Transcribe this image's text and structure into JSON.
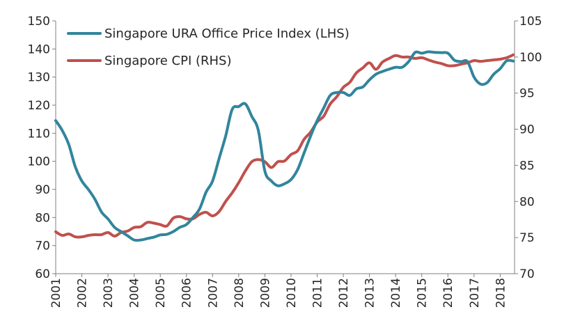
{
  "chart_data": {
    "type": "line",
    "x_range": [
      2001.0,
      2018.55
    ],
    "x_ticks": [
      "2001",
      "2002",
      "2003",
      "2004",
      "2005",
      "2006",
      "2007",
      "2008",
      "2009",
      "2010",
      "2011",
      "2012",
      "2013",
      "2014",
      "2015",
      "2016",
      "2017",
      "2018"
    ],
    "y_left": {
      "range": [
        60,
        150
      ],
      "ticks": [
        "60",
        "70",
        "80",
        "90",
        "100",
        "110",
        "120",
        "130",
        "140",
        "150"
      ]
    },
    "y_right": {
      "range": [
        70,
        105
      ],
      "ticks": [
        "70",
        "75",
        "80",
        "85",
        "90",
        "95",
        "100",
        "105"
      ]
    },
    "grid": false,
    "legend_position": "top-left",
    "series": [
      {
        "name": "Singapore URA Office Price Index (LHS)",
        "axis": "left",
        "color": "#31859c",
        "points": [
          [
            2001.0,
            114.5
          ],
          [
            2001.25,
            111
          ],
          [
            2001.5,
            106
          ],
          [
            2001.75,
            98
          ],
          [
            2002.0,
            93
          ],
          [
            2002.25,
            90
          ],
          [
            2002.5,
            86.5
          ],
          [
            2002.75,
            82
          ],
          [
            2003.0,
            79.5
          ],
          [
            2003.25,
            76.5
          ],
          [
            2003.5,
            75
          ],
          [
            2003.75,
            73.5
          ],
          [
            2004.0,
            72
          ],
          [
            2004.25,
            72
          ],
          [
            2004.5,
            72.5
          ],
          [
            2004.75,
            73
          ],
          [
            2005.0,
            73.8
          ],
          [
            2005.25,
            74
          ],
          [
            2005.5,
            75
          ],
          [
            2005.75,
            76.5
          ],
          [
            2006.0,
            77.5
          ],
          [
            2006.25,
            80
          ],
          [
            2006.5,
            83
          ],
          [
            2006.75,
            89
          ],
          [
            2007.0,
            93
          ],
          [
            2007.25,
            101
          ],
          [
            2007.5,
            109
          ],
          [
            2007.75,
            118.5
          ],
          [
            2008.0,
            119.5
          ],
          [
            2008.25,
            120.5
          ],
          [
            2008.5,
            116
          ],
          [
            2008.75,
            111
          ],
          [
            2009.0,
            96.5
          ],
          [
            2009.25,
            93
          ],
          [
            2009.5,
            91.3
          ],
          [
            2009.75,
            92
          ],
          [
            2010.0,
            93.5
          ],
          [
            2010.25,
            97
          ],
          [
            2010.5,
            103
          ],
          [
            2010.75,
            109
          ],
          [
            2011.0,
            114.5
          ],
          [
            2011.25,
            119
          ],
          [
            2011.5,
            123.5
          ],
          [
            2011.75,
            124.5
          ],
          [
            2012.0,
            124.5
          ],
          [
            2012.25,
            123.5
          ],
          [
            2012.5,
            125.8
          ],
          [
            2012.75,
            126.5
          ],
          [
            2013.0,
            129
          ],
          [
            2013.25,
            131
          ],
          [
            2013.5,
            132
          ],
          [
            2013.75,
            132.8
          ],
          [
            2014.0,
            133.5
          ],
          [
            2014.25,
            133.5
          ],
          [
            2014.5,
            135.5
          ],
          [
            2014.75,
            138.8
          ],
          [
            2015.0,
            138.5
          ],
          [
            2015.25,
            139
          ],
          [
            2015.5,
            138.8
          ],
          [
            2015.75,
            138.7
          ],
          [
            2016.0,
            138.5
          ],
          [
            2016.25,
            136
          ],
          [
            2016.5,
            135.5
          ],
          [
            2016.75,
            135.5
          ],
          [
            2017.0,
            130
          ],
          [
            2017.25,
            127.5
          ],
          [
            2017.5,
            128
          ],
          [
            2017.75,
            131
          ],
          [
            2018.0,
            133
          ],
          [
            2018.25,
            135.8
          ],
          [
            2018.5,
            135.7
          ]
        ]
      },
      {
        "name": "Singapore CPI (RHS)",
        "axis": "right",
        "color": "#c0504d",
        "points": [
          [
            2001.0,
            75.8
          ],
          [
            2001.25,
            75.3
          ],
          [
            2001.5,
            75.5
          ],
          [
            2001.75,
            75.1
          ],
          [
            2002.0,
            75.1
          ],
          [
            2002.25,
            75.3
          ],
          [
            2002.5,
            75.4
          ],
          [
            2002.75,
            75.4
          ],
          [
            2003.0,
            75.7
          ],
          [
            2003.25,
            75.2
          ],
          [
            2003.5,
            75.7
          ],
          [
            2003.75,
            75.9
          ],
          [
            2004.0,
            76.4
          ],
          [
            2004.25,
            76.5
          ],
          [
            2004.5,
            77.1
          ],
          [
            2004.75,
            77
          ],
          [
            2005.0,
            76.8
          ],
          [
            2005.25,
            76.6
          ],
          [
            2005.5,
            77.7
          ],
          [
            2005.75,
            77.9
          ],
          [
            2006.0,
            77.6
          ],
          [
            2006.25,
            77.6
          ],
          [
            2006.5,
            78.2
          ],
          [
            2006.75,
            78.5
          ],
          [
            2007.0,
            78
          ],
          [
            2007.25,
            78.6
          ],
          [
            2007.5,
            80
          ],
          [
            2007.75,
            81.2
          ],
          [
            2008.0,
            82.6
          ],
          [
            2008.25,
            84.2
          ],
          [
            2008.5,
            85.5
          ],
          [
            2008.75,
            85.8
          ],
          [
            2009.0,
            85.5
          ],
          [
            2009.25,
            84.7
          ],
          [
            2009.5,
            85.5
          ],
          [
            2009.75,
            85.6
          ],
          [
            2010.0,
            86.5
          ],
          [
            2010.25,
            87
          ],
          [
            2010.5,
            88.6
          ],
          [
            2010.75,
            89.6
          ],
          [
            2011.0,
            91
          ],
          [
            2011.25,
            91.8
          ],
          [
            2011.5,
            93.5
          ],
          [
            2011.75,
            94.5
          ],
          [
            2012.0,
            95.8
          ],
          [
            2012.25,
            96.5
          ],
          [
            2012.5,
            97.8
          ],
          [
            2012.75,
            98.5
          ],
          [
            2013.0,
            99.2
          ],
          [
            2013.25,
            98.3
          ],
          [
            2013.5,
            99.3
          ],
          [
            2013.75,
            99.8
          ],
          [
            2014.0,
            100.2
          ],
          [
            2014.25,
            100
          ],
          [
            2014.5,
            100
          ],
          [
            2014.75,
            99.8
          ],
          [
            2015.0,
            99.9
          ],
          [
            2015.25,
            99.6
          ],
          [
            2015.5,
            99.3
          ],
          [
            2015.75,
            99.1
          ],
          [
            2016.0,
            98.8
          ],
          [
            2016.25,
            98.8
          ],
          [
            2016.5,
            99
          ],
          [
            2016.75,
            99.2
          ],
          [
            2017.0,
            99.5
          ],
          [
            2017.25,
            99.4
          ],
          [
            2017.5,
            99.5
          ],
          [
            2017.75,
            99.6
          ],
          [
            2018.0,
            99.7
          ],
          [
            2018.25,
            99.9
          ],
          [
            2018.5,
            100.3
          ]
        ]
      }
    ]
  }
}
